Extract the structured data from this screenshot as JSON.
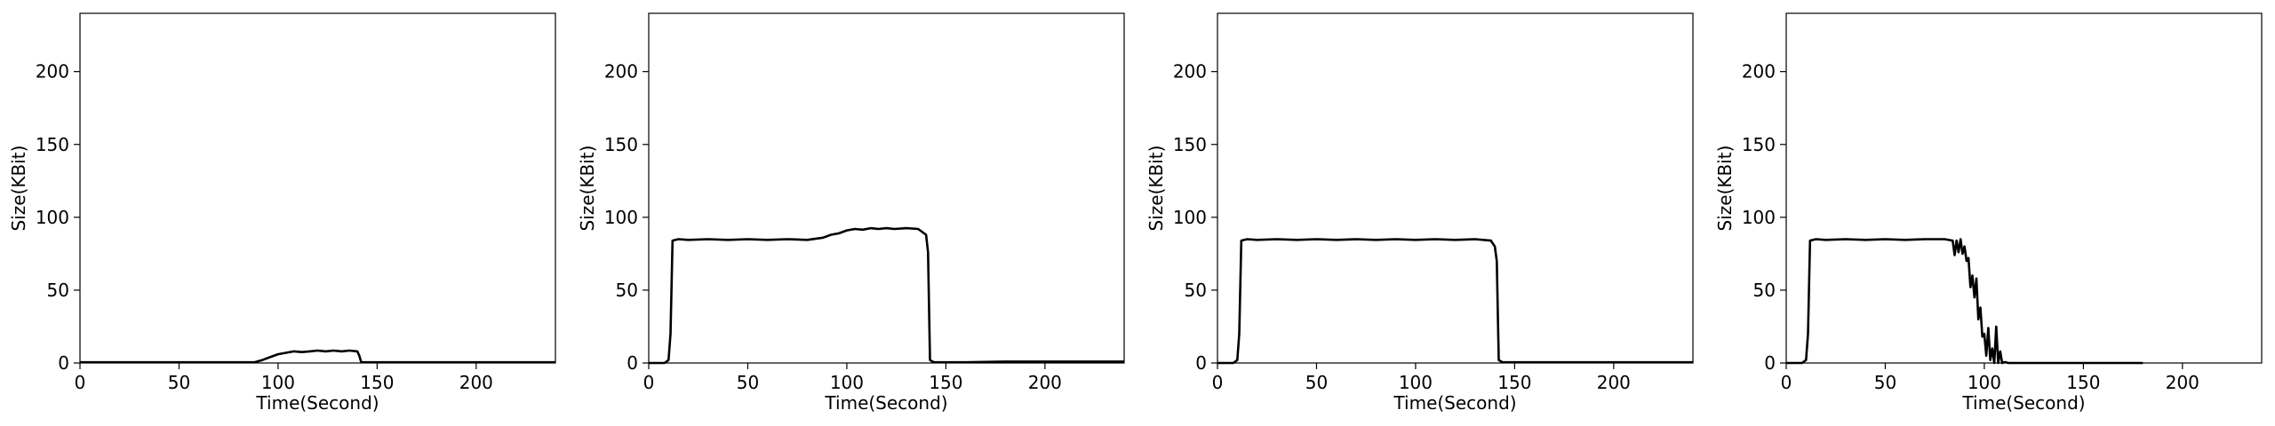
{
  "chart_data": [
    {
      "type": "line",
      "xlabel": "Time(Second)",
      "ylabel": "Size(KBit)",
      "xlim": [
        0,
        240
      ],
      "ylim": [
        0,
        240
      ],
      "xticks": [
        "0",
        "50",
        "100",
        "150",
        "200"
      ],
      "yticks": [
        "0",
        "50",
        "100",
        "150",
        "200"
      ],
      "series": [
        {
          "x": [
            0,
            88,
            92,
            96,
            100,
            104,
            108,
            112,
            116,
            120,
            124,
            128,
            132,
            136,
            140,
            141,
            142,
            160,
            200,
            240
          ],
          "y": [
            0.5,
            0.5,
            2,
            4,
            6,
            7,
            8,
            7.5,
            8,
            8.5,
            8,
            8.5,
            8,
            8.5,
            8,
            5,
            0.5,
            0.5,
            0.5,
            0.5
          ]
        }
      ]
    },
    {
      "type": "line",
      "xlabel": "Time(Second)",
      "ylabel": "Size(KBit)",
      "xlim": [
        0,
        240
      ],
      "ylim": [
        0,
        240
      ],
      "xticks": [
        "0",
        "50",
        "100",
        "150",
        "200"
      ],
      "yticks": [
        "0",
        "50",
        "100",
        "150",
        "200"
      ],
      "series": [
        {
          "x": [
            0,
            8,
            10,
            11,
            12,
            15,
            20,
            30,
            40,
            50,
            60,
            70,
            80,
            88,
            92,
            96,
            100,
            104,
            108,
            112,
            116,
            120,
            124,
            130,
            136,
            140,
            141,
            142,
            144,
            160,
            180,
            200,
            240
          ],
          "y": [
            0,
            0,
            2,
            20,
            84,
            85,
            84.5,
            85,
            84.5,
            85,
            84.5,
            85,
            84.5,
            86,
            88,
            89,
            91,
            92,
            91.5,
            92.5,
            92,
            92.5,
            92,
            92.5,
            92,
            88,
            76,
            2,
            0.5,
            0.5,
            1,
            1,
            1
          ]
        }
      ]
    },
    {
      "type": "line",
      "xlabel": "Time(Second)",
      "ylabel": "Size(KBit)",
      "xlim": [
        0,
        240
      ],
      "ylim": [
        0,
        240
      ],
      "xticks": [
        "0",
        "50",
        "100",
        "150",
        "200"
      ],
      "yticks": [
        "0",
        "50",
        "100",
        "150",
        "200"
      ],
      "series": [
        {
          "x": [
            0,
            8,
            10,
            11,
            12,
            15,
            20,
            30,
            40,
            50,
            60,
            70,
            80,
            90,
            100,
            110,
            120,
            130,
            138,
            140,
            141,
            142,
            144,
            160,
            200,
            240
          ],
          "y": [
            0,
            0,
            2,
            20,
            84,
            85,
            84.5,
            85,
            84.5,
            85,
            84.5,
            85,
            84.5,
            85,
            84.5,
            85,
            84.5,
            85,
            84,
            80,
            70,
            2,
            0.5,
            0.5,
            0.5,
            0.5
          ]
        }
      ]
    },
    {
      "type": "line",
      "xlabel": "Time(Second)",
      "ylabel": "Size(KBit)",
      "xlim": [
        0,
        240
      ],
      "ylim": [
        0,
        240
      ],
      "xticks": [
        "0",
        "50",
        "100",
        "150",
        "200"
      ],
      "yticks": [
        "0",
        "50",
        "100",
        "150",
        "200"
      ],
      "series": [
        {
          "x": [
            0,
            8,
            10,
            11,
            12,
            15,
            20,
            30,
            40,
            50,
            60,
            70,
            80,
            84,
            85,
            86,
            87,
            88,
            89,
            90,
            91,
            92,
            93,
            94,
            95,
            96,
            97,
            98,
            99,
            100,
            101,
            102,
            103,
            104,
            105,
            106,
            107,
            108,
            109,
            110,
            111,
            112,
            120,
            140,
            160,
            180
          ],
          "y": [
            0,
            0,
            2,
            20,
            84,
            85,
            84.5,
            85,
            84.5,
            85,
            84.5,
            85,
            85,
            84,
            74,
            84,
            76,
            85,
            75,
            80,
            70,
            72,
            52,
            60,
            45,
            58,
            30,
            38,
            18,
            20,
            5,
            24,
            2,
            10,
            0,
            25,
            0,
            8,
            0,
            0.5,
            0.5,
            0,
            0,
            0,
            0,
            0
          ]
        }
      ]
    }
  ]
}
